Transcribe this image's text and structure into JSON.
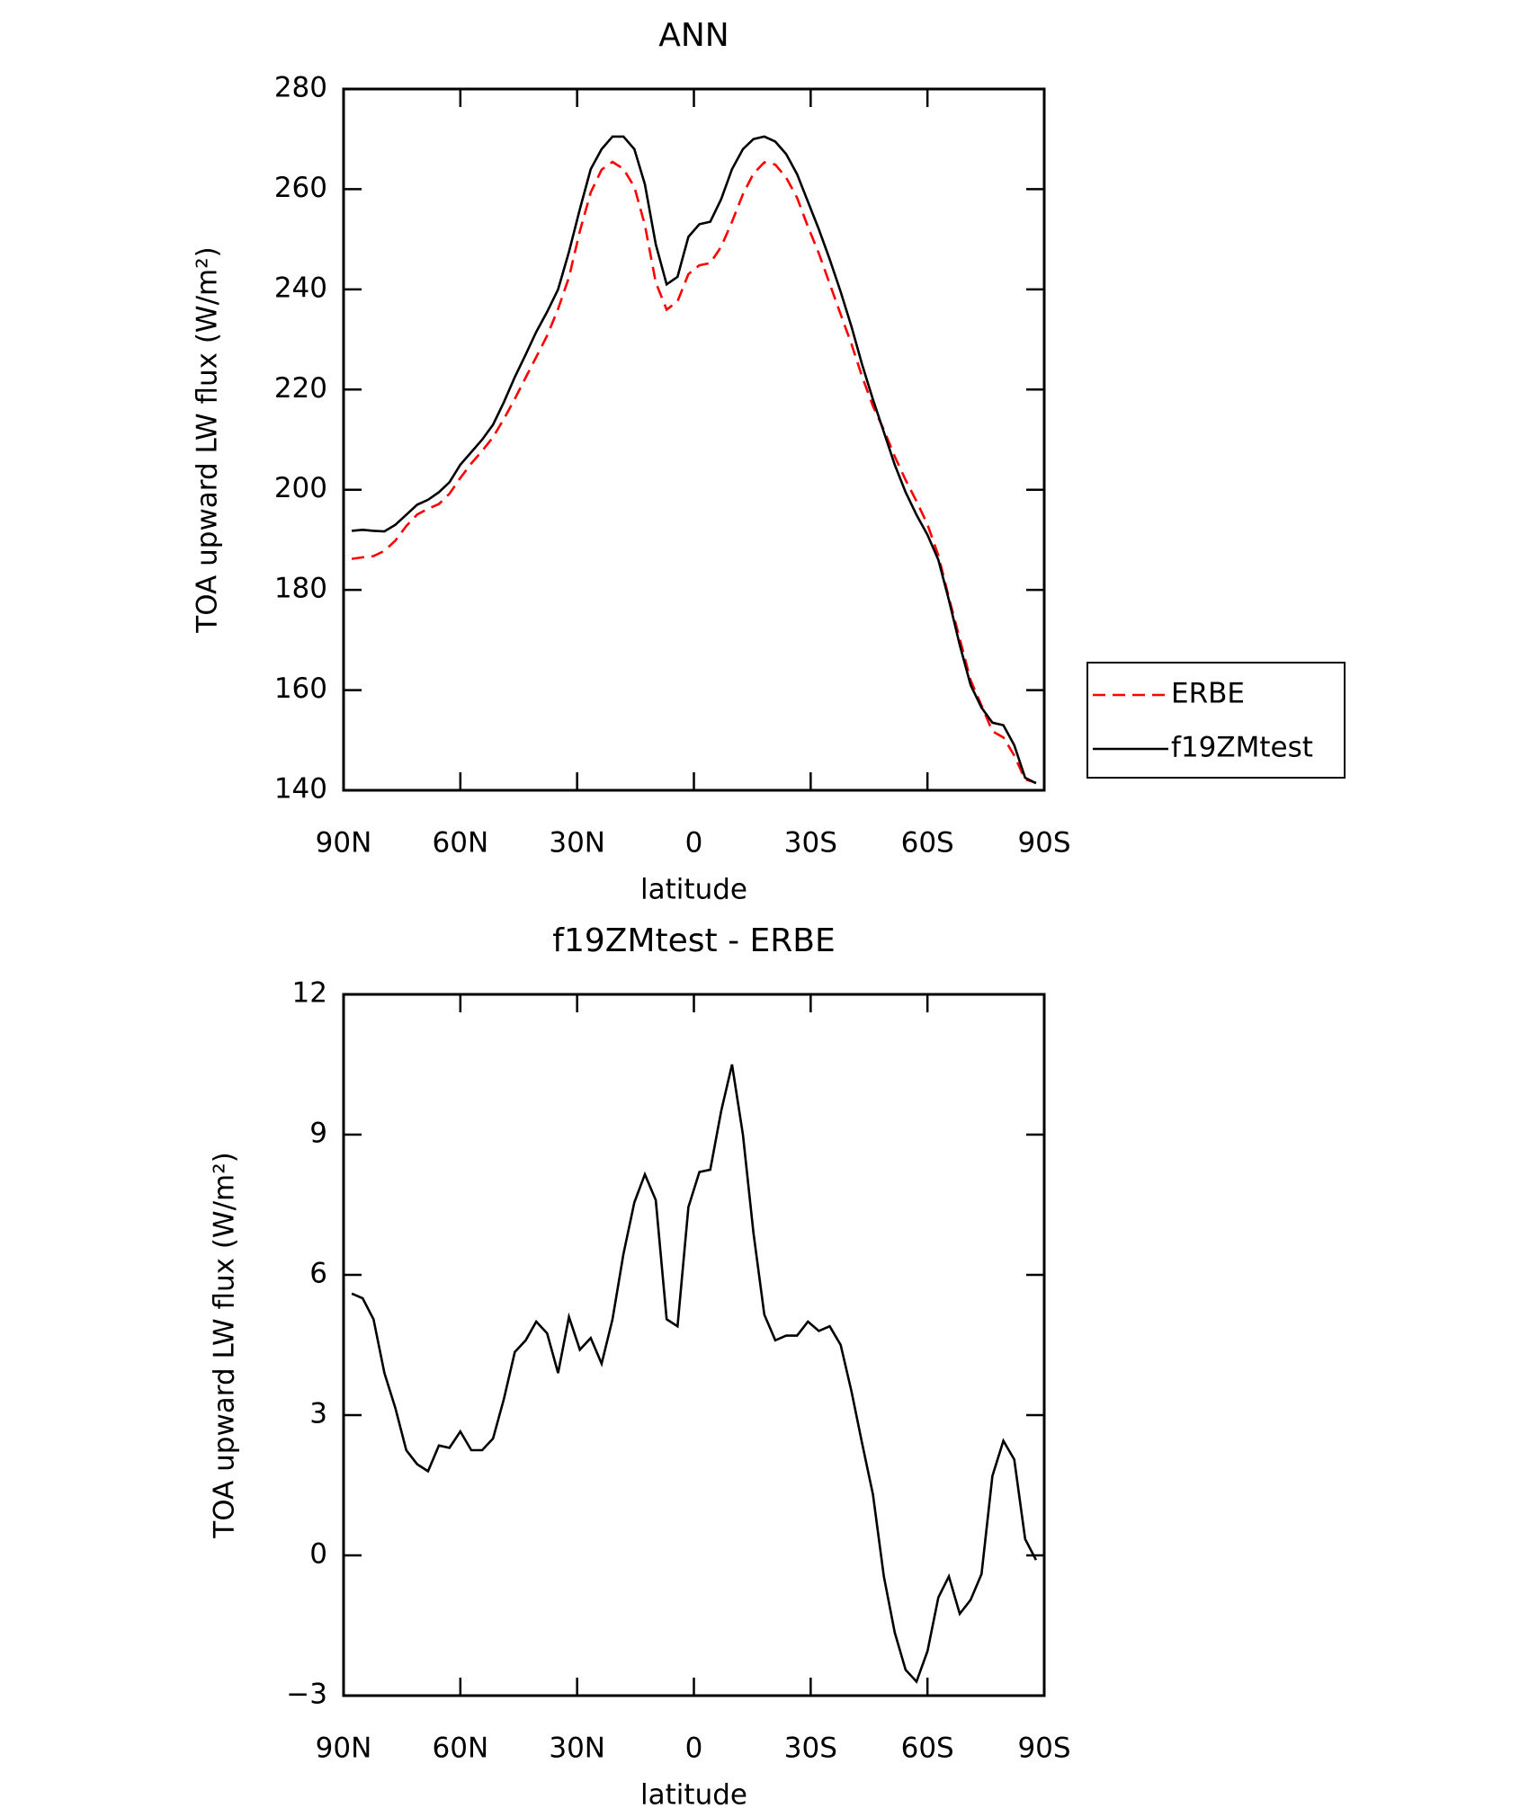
{
  "chart_data": [
    {
      "type": "line",
      "title": "ANN",
      "xlabel": "latitude",
      "ylabel": "TOA upward LW flux (W/m²)",
      "xlim": [
        90,
        -90
      ],
      "xticks": [
        {
          "value": 90,
          "label": "90N"
        },
        {
          "value": 60,
          "label": "60N"
        },
        {
          "value": 30,
          "label": "30N"
        },
        0,
        {
          "value": -30,
          "label": "30S"
        },
        {
          "value": -60,
          "label": "60S"
        },
        {
          "value": -90,
          "label": "90S"
        }
      ],
      "ylim": [
        140,
        280
      ],
      "yticks": [
        140,
        160,
        180,
        200,
        220,
        240,
        260,
        280
      ],
      "legend": "right",
      "x": [
        87.9,
        85.1,
        82.3,
        79.5,
        76.7,
        73.9,
        71.1,
        68.3,
        65.5,
        62.8,
        60.0,
        57.2,
        54.4,
        51.6,
        48.8,
        46.0,
        43.2,
        40.5,
        37.7,
        34.9,
        32.1,
        29.3,
        26.5,
        23.7,
        20.9,
        18.1,
        15.3,
        12.6,
        9.8,
        7.0,
        4.2,
        1.4,
        -1.4,
        -4.2,
        -7.0,
        -9.8,
        -12.6,
        -15.3,
        -18.1,
        -20.9,
        -23.7,
        -26.5,
        -29.3,
        -32.1,
        -34.9,
        -37.7,
        -40.5,
        -43.2,
        -46.0,
        -48.8,
        -51.6,
        -54.4,
        -57.2,
        -60.0,
        -62.8,
        -65.5,
        -68.3,
        -71.1,
        -73.9,
        -76.7,
        -79.5,
        -82.3,
        -85.1,
        -87.9
      ],
      "series": [
        {
          "name": "ERBE",
          "color": "#ff0000",
          "linestyle": "dashed",
          "values": [
            186.2,
            186.5,
            186.75,
            187.8,
            189.85,
            192.75,
            195.05,
            196.2,
            197.15,
            199.2,
            202.35,
            205.25,
            207.75,
            210.5,
            214.15,
            218.15,
            222.4,
            226.5,
            230.75,
            236.1,
            242.4,
            251.6,
            259.35,
            263.9,
            265.45,
            264.05,
            260.45,
            252.85,
            241.4,
            235.95,
            237.6,
            243.05,
            244.8,
            245.25,
            248.5,
            253.5,
            259,
            263.1,
            265.35,
            264.9,
            262.3,
            258.3,
            252.5,
            247.2,
            241.1,
            235,
            229,
            222.6,
            216.7,
            211.95,
            206.65,
            201.95,
            197.7,
            193.05,
            186.9,
            178.45,
            170.25,
            161.95,
            156.9,
            151.8,
            150.55,
            146.95,
            142.15,
            141.5
          ]
        },
        {
          "name": "f19ZMtest",
          "color": "#000000",
          "linestyle": "solid",
          "values": [
            191.8,
            192,
            191.8,
            191.7,
            193,
            195,
            197,
            198,
            199.5,
            201.5,
            205,
            207.5,
            210,
            213,
            217.5,
            222.5,
            227,
            231.5,
            235.5,
            240,
            247.5,
            256,
            264,
            268,
            270.5,
            270.5,
            268,
            261,
            249,
            241,
            242.5,
            250.5,
            253,
            253.5,
            258,
            264,
            268,
            270,
            270.5,
            269.5,
            267,
            263,
            257.5,
            252,
            246,
            239.5,
            232.5,
            225,
            218,
            211.5,
            205,
            199.5,
            195,
            191,
            186,
            178,
            169,
            161,
            156.5,
            153.5,
            153,
            149,
            142.5,
            141.4
          ]
        }
      ]
    },
    {
      "type": "line",
      "title": "f19ZMtest - ERBE",
      "xlabel": "latitude",
      "ylabel": "TOA upward LW flux (W/m²)",
      "xlim": [
        90,
        -90
      ],
      "xticks": [
        {
          "value": 90,
          "label": "90N"
        },
        {
          "value": 60,
          "label": "60N"
        },
        {
          "value": 30,
          "label": "30N"
        },
        0,
        {
          "value": -30,
          "label": "30S"
        },
        {
          "value": -60,
          "label": "60S"
        },
        {
          "value": -90,
          "label": "90S"
        }
      ],
      "ylim": [
        -3,
        12
      ],
      "yticks": [
        {
          "value": -3,
          "label": "−3"
        },
        0,
        3,
        6,
        9,
        12
      ],
      "color": "#000000",
      "x": [
        87.9,
        85.1,
        82.3,
        79.5,
        76.7,
        73.9,
        71.1,
        68.3,
        65.5,
        62.8,
        60.0,
        57.2,
        54.4,
        51.6,
        48.8,
        46.0,
        43.2,
        40.5,
        37.7,
        34.9,
        32.1,
        29.3,
        26.5,
        23.7,
        20.9,
        18.1,
        15.3,
        12.6,
        9.8,
        7.0,
        4.2,
        1.4,
        -1.4,
        -4.2,
        -7.0,
        -9.8,
        -12.6,
        -15.3,
        -18.1,
        -20.9,
        -23.7,
        -26.5,
        -29.3,
        -32.1,
        -34.9,
        -37.7,
        -40.5,
        -43.2,
        -46.0,
        -48.8,
        -51.6,
        -54.4,
        -57.2,
        -60.0,
        -62.8,
        -65.5,
        -68.3,
        -71.1,
        -73.9,
        -76.7,
        -79.5,
        -82.3,
        -85.1,
        -87.9
      ],
      "values": [
        5.6,
        5.5,
        5.05,
        3.9,
        3.15,
        2.25,
        1.95,
        1.8,
        2.35,
        2.3,
        2.65,
        2.25,
        2.25,
        2.5,
        3.35,
        4.35,
        4.6,
        5.0,
        4.75,
        3.9,
        5.1,
        4.4,
        4.65,
        4.1,
        5.05,
        6.45,
        7.55,
        8.15,
        7.6,
        5.05,
        4.9,
        7.45,
        8.2,
        8.25,
        9.5,
        10.5,
        9.0,
        6.9,
        5.15,
        4.6,
        4.7,
        4.7,
        5.0,
        4.8,
        4.9,
        4.5,
        3.5,
        2.4,
        1.3,
        -0.45,
        -1.65,
        -2.45,
        -2.7,
        -2.05,
        -0.9,
        -0.45,
        -1.25,
        -0.95,
        -0.4,
        1.7,
        2.45,
        2.05,
        0.35,
        -0.1
      ]
    }
  ]
}
